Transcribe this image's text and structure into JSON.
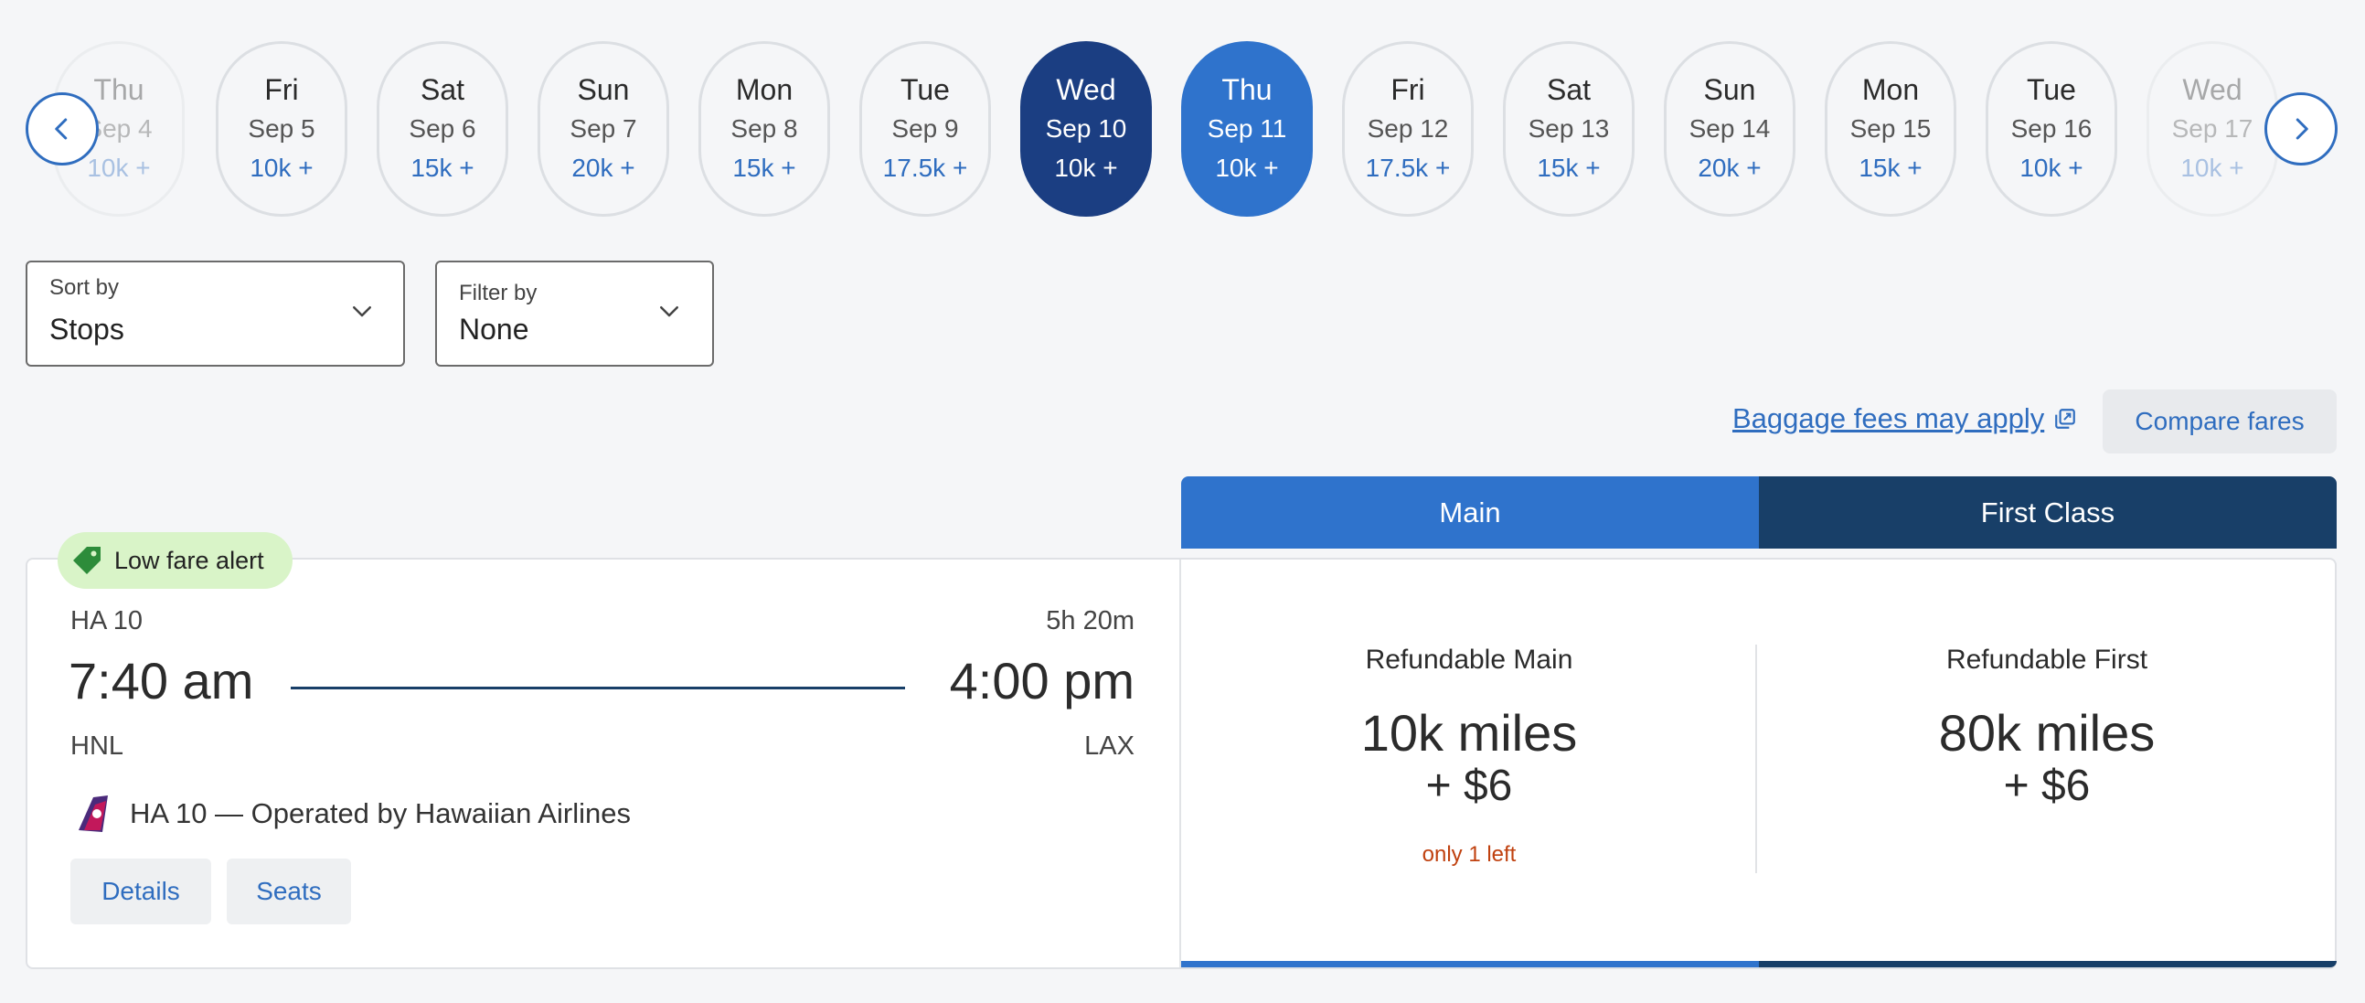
{
  "date_carousel": {
    "prev_icon": "chevron-left-icon",
    "next_icon": "chevron-right-icon",
    "dates": [
      {
        "dow": "Thu",
        "date": "Sep 4",
        "price": "10k +",
        "state": "faded"
      },
      {
        "dow": "Fri",
        "date": "Sep 5",
        "price": "10k +",
        "state": "normal"
      },
      {
        "dow": "Sat",
        "date": "Sep 6",
        "price": "15k +",
        "state": "normal"
      },
      {
        "dow": "Sun",
        "date": "Sep 7",
        "price": "20k +",
        "state": "normal"
      },
      {
        "dow": "Mon",
        "date": "Sep 8",
        "price": "15k +",
        "state": "normal"
      },
      {
        "dow": "Tue",
        "date": "Sep 9",
        "price": "17.5k +",
        "state": "normal"
      },
      {
        "dow": "Wed",
        "date": "Sep 10",
        "price": "10k +",
        "state": "selected-dark"
      },
      {
        "dow": "Thu",
        "date": "Sep 11",
        "price": "10k +",
        "state": "selected-blue"
      },
      {
        "dow": "Fri",
        "date": "Sep 12",
        "price": "17.5k +",
        "state": "normal"
      },
      {
        "dow": "Sat",
        "date": "Sep 13",
        "price": "15k +",
        "state": "normal"
      },
      {
        "dow": "Sun",
        "date": "Sep 14",
        "price": "20k +",
        "state": "normal"
      },
      {
        "dow": "Mon",
        "date": "Sep 15",
        "price": "15k +",
        "state": "normal"
      },
      {
        "dow": "Tue",
        "date": "Sep 16",
        "price": "10k +",
        "state": "normal"
      },
      {
        "dow": "Wed",
        "date": "Sep 17",
        "price": "10k +",
        "state": "faded"
      }
    ]
  },
  "sort": {
    "label": "Sort by",
    "value": "Stops"
  },
  "filter": {
    "label": "Filter by",
    "value": "None"
  },
  "baggage": {
    "link": "Baggage fees may apply",
    "icon": "external-link-icon"
  },
  "compare_fares": "Compare fares",
  "fare_tabs": {
    "main": "Main",
    "first": "First Class"
  },
  "flight": {
    "badge": "Low fare alert",
    "badge_icon": "tag-icon",
    "flight_number": "HA 10",
    "duration": "5h 20m",
    "depart_time": "7:40 am",
    "arrive_time": "4:00 pm",
    "origin": "HNL",
    "destination": "LAX",
    "operated_by": "HA 10 — Operated by Hawaiian Airlines",
    "details_button": "Details",
    "seats_button": "Seats"
  },
  "fares": {
    "main": {
      "name": "Refundable Main",
      "miles": "10k miles",
      "fee": "+ $6",
      "availability": "only 1 left"
    },
    "first": {
      "name": "Refundable First",
      "miles": "80k miles",
      "fee": "+ $6"
    }
  },
  "colors": {
    "accent_blue": "#2f73cc",
    "dark_navy": "#1b3e82",
    "first_class_navy": "#183f68",
    "link_blue": "#2f6dbf",
    "badge_green": "#d9f4c8",
    "alert_orange": "#c0410f"
  }
}
